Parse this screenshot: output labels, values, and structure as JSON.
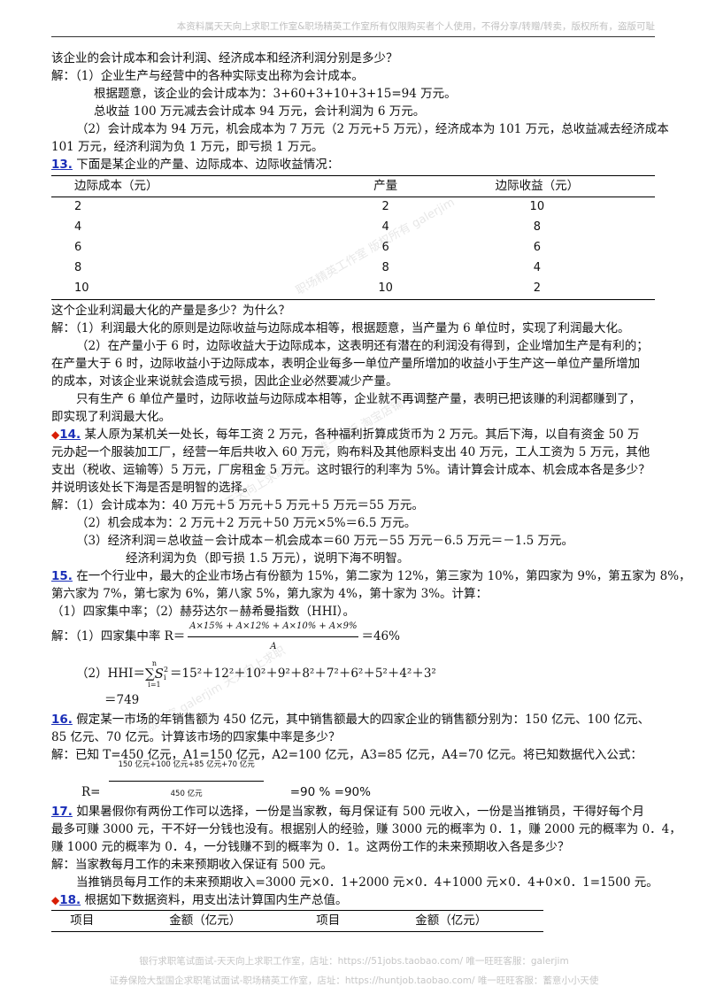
{
  "header": {
    "notice": "本资料属天天向上求职工作室&职场精英工作室所有仅限购买者个人使用，不得分享/转赠/转卖，版权所有，盗版可耻"
  },
  "q12": {
    "question": "该企业的会计成本和会计利润、经济成本和经济利润分别是多少？",
    "ans1": "解：（1）企业生产与经营中的各种实际支出称为会计成本。",
    "ans2": "根据题意，该企业的会计成本为：3+60+3+10+3+15=94 万元。",
    "ans3": "总收益 100 万元减去会计成本 94 万元，会计利润为 6 万元。",
    "ans4": "（2）会计成本为 94 万元，机会成本为 7 万元（2 万元+5 万元），经济成本为 101 万元，总收益减去经济成本",
    "ans5": "101 万元，经济利润为负 1 万元，即亏损 1 万元。"
  },
  "q13": {
    "num": "13.",
    "title": " 下面是某企业的产量、边际成本、边际收益情况：",
    "headers": [
      "边际成本（元）",
      "产量",
      "边际收益（元）"
    ],
    "rows": [
      [
        "2",
        "2",
        "10"
      ],
      [
        "4",
        "4",
        "8"
      ],
      [
        "6",
        "6",
        "6"
      ],
      [
        "8",
        "8",
        "4"
      ],
      [
        "10",
        "10",
        "2"
      ]
    ],
    "question": "这个企业利润最大化的产量是多少？为什么？",
    "a1": "解：（1）利润最大化的原则是边际收益与边际成本相等，根据题意，当产量为 6 单位时，实现了利润最大化。",
    "a2": "（2）在产量小于 6 时，边际收益大于边际成本，这表明还有潜在的利润没有得到，企业增加生产是有利的；",
    "a3": "在产量大于 6 时，边际收益小于边际成本，表明企业每多一单位产量所增加的收益小于生产这一单位产量所增加",
    "a4": "的成本，对该企业来说就会造成亏损，因此企业必然要减少产量。",
    "a5": "只有生产 6 单位产量时，边际收益与边际成本相等，企业就不再调整产量，表明已把该赚的利润都赚到了，",
    "a6": "即实现了利润最大化。"
  },
  "q14": {
    "marker": "◆",
    "num": "14.",
    "l1": " 某人原为某机关一处长，每年工资 2 万元，各种福利折算成货币为 2 万元。其后下海，以自有资金 50 万",
    "l2": "元办起一个服装加工厂，经营一年后共收入 60 万元，购布料及其他原料支出 40 万元，工人工资为 5 万元，其他",
    "l3": "支出（税收、运输等）5 万元，厂房租金 5 万元。这时银行的利率为 5%。请计算会计成本、机会成本各是多少？",
    "l4": "并说明该处长下海是否是明智的选择。",
    "a1": "解：（1）会计成本为：40 万元＋5 万元＋5 万元＋5 万元＝55 万元。",
    "a2": "（2）机会成本为：2 万元＋2 万元＋50 万元×5%＝6.5 万元。",
    "a3": "（3）经济利润＝总收益－会计成本－机会成本＝60 万元－55 万元－6.5 万元＝－1.5 万元。",
    "a4": "经济利润为负（即亏损 1.5 万元），说明下海不明智。"
  },
  "q15": {
    "num": "15.",
    "l1": " 在一个行业中，最大的企业市场占有份额为 15%，第二家为 12%，第三家为 10%，第四家为 9%，第五家为 8%，",
    "l2": "第六家为 7%，第七家为 6%，第八家 5%，第九家为 4%，第十家为 3%。计算：",
    "l3": "（1）四家集中率；（2）赫芬达尔－赫希曼指数（HHI）。",
    "f1_prefix": "解：（1）四家集中率 R＝",
    "f1_num": "A×15% + A×12% + A×10% + A×9%",
    "f1_den": "A",
    "f1_result": "＝46%",
    "f2_prefix": "（2）HHI＝",
    "f2_sum": "∑S",
    "f2_top": "n",
    "f2_bottom": "i=1",
    "f2_sq": "2",
    "f2_sub": "i",
    "f2_expr": "＝15²＋12²＋10²＋9²＋8²＋7²＋6²＋5²＋4²＋3²",
    "f2_result": "＝749"
  },
  "q16": {
    "num": "16.",
    "l1": " 假定某一市场的年销售额为 450 亿元，其中销售额最大的四家企业的销售额分别为：150 亿元、100 亿元、",
    "l2": "85 亿元、70 亿元。计算该市场的四家集中率是多少？",
    "a1": "解：已知 T=450 亿元，A1=150 亿元，A2=100 亿元，A3=85 亿元，A4=70 亿元。将已知数据代入公式：",
    "r_label": "R=",
    "r_num": "150 亿元+100 亿元+85 亿元+70 亿元",
    "r_den": "450 亿元",
    "r_result": "=90 % =90%"
  },
  "q17": {
    "num": "17.",
    "l1": " 如果暑假你有两份工作可以选择，一份是当家教，每月保证有 500 元收入，一份是当推销员，干得好每个月",
    "l2": "最多可赚 3000 元，干不好一分钱也没有。根据别人的经验，赚 3000 元的概率为 0．1，赚 2000 元的概率为 0．4，",
    "l3": "赚 1000 元的概率为 0．4，一分钱赚不到的概率为 0．1。这两份工作的未来预期收入各是多少？",
    "a1": "解：当家教每月工作的未来预期收入保证有 500 元。",
    "a2": "当推销员每月工作的未来预期收入=3000 元×0．1+2000 元×0．4+1000 元×0．4+0×0．1=1500 元。"
  },
  "q18": {
    "marker": "◆",
    "num": "18.",
    "title": " 根据如下数据资料，用支出法计算国内生产总值。",
    "headers": [
      "项目",
      "金额（亿元）",
      "项目",
      "金额（亿元）"
    ]
  },
  "watermark": {
    "lines": [
      "职场精英工作室 版权所有 galerjim",
      "天天向上求职工作室 唯一正版 淘宝店铺",
      "盗版必究 galerjim 天天向上求职"
    ]
  },
  "footer": {
    "line1": "银行求职笔试面试-天天向上求职工作室，店址：https://51jobs.taobao.com/ 唯一旺旺客服：galerjim",
    "line2": "证券保险大型国企求职笔试面试-职场精英工作室，店址：https://huntjob.taobao.com/ 唯一旺旺客服：蓄意小小天使"
  }
}
